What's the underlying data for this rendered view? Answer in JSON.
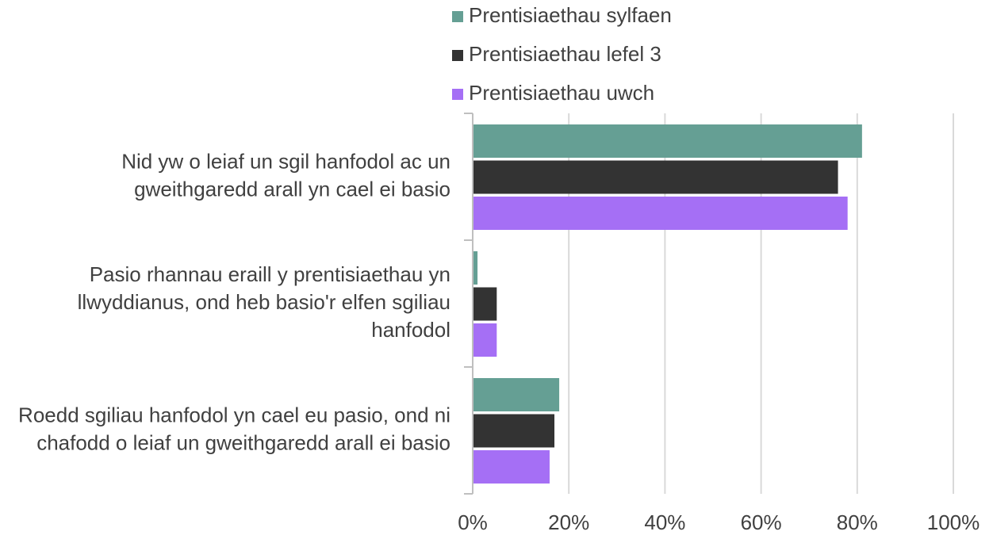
{
  "chart_data": {
    "type": "hbar",
    "categories": [
      "Nid yw o leiaf un sgil hanfodol ac un gweithgaredd arall yn cael ei basio",
      "Pasio rhannau eraill y prentisiaethau yn llwyddianus, ond heb basio'r elfen sgiliau hanfodol",
      "Roedd sgiliau hanfodol yn cael eu pasio, ond ni chafodd o leiaf un gweithgaredd arall ei basio"
    ],
    "series": [
      {
        "name": "Prentisiaethau sylfaen",
        "color": "#659f94",
        "values": [
          81,
          1,
          18
        ]
      },
      {
        "name": "Prentisiaethau lefel 3",
        "color": "#333333",
        "values": [
          76,
          5,
          17
        ]
      },
      {
        "name": "Prentisiaethau uwch",
        "color": "#a56ff5",
        "values": [
          78,
          5,
          16
        ]
      }
    ],
    "xlim": [
      0,
      100
    ],
    "xticks": [
      {
        "value": 0,
        "label": "0%"
      },
      {
        "value": 20,
        "label": "20%"
      },
      {
        "value": 40,
        "label": "40%"
      },
      {
        "value": 60,
        "label": "60%"
      },
      {
        "value": 80,
        "label": "80%"
      },
      {
        "value": 100,
        "label": "100%"
      }
    ],
    "grid": true,
    "legend": "top"
  }
}
